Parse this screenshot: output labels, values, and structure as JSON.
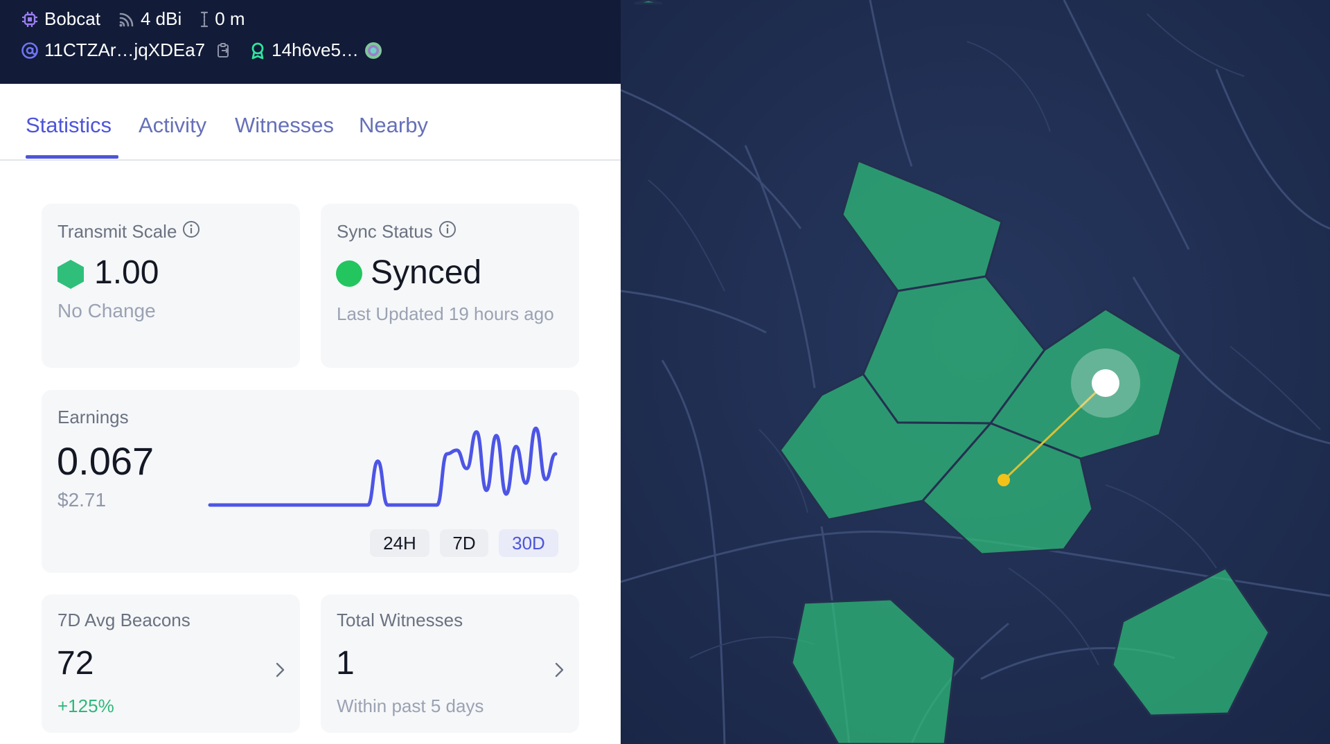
{
  "header": {
    "device": "Bobcat",
    "gain": "4 dBi",
    "elevation": "0 m",
    "address": "11CTZAr…jqXDEa7",
    "owner": "14h6ve5…"
  },
  "tabs": [
    {
      "label": "Statistics"
    },
    {
      "label": "Activity"
    },
    {
      "label": "Witnesses"
    },
    {
      "label": "Nearby"
    }
  ],
  "transmit": {
    "label": "Transmit Scale",
    "value": "1.00",
    "note": "No Change"
  },
  "sync": {
    "label": "Sync Status",
    "value": "Synced",
    "note": "Last Updated 19 hours ago"
  },
  "earnings": {
    "label": "Earnings",
    "value": "0.067",
    "usd": "$2.71",
    "ranges": [
      "24H",
      "7D",
      "30D"
    ],
    "selected_range": "30D"
  },
  "beacons": {
    "label": "7D Avg Beacons",
    "value": "72",
    "change": "+125%"
  },
  "witnesses": {
    "label": "Total Witnesses",
    "value": "1",
    "note": "Within past 5 days"
  },
  "colors": {
    "accent": "#4d55d9",
    "hex_green": "#2fbf7a",
    "sync_green": "#22c55e",
    "positive": "#2eb87a",
    "header_bg": "#121b37"
  },
  "icons": {
    "device": "chip-icon",
    "gain": "signal-icon",
    "elevation": "elevation-icon",
    "address": "at-icon",
    "copy": "copy-icon",
    "owner": "ribbon-icon",
    "owner_avatar": "avatar-icon"
  },
  "chart_data": {
    "type": "line",
    "x": [
      0,
      1,
      2,
      3,
      4,
      5,
      6,
      7,
      8,
      9,
      10,
      11,
      12,
      13,
      14,
      15,
      16,
      17,
      18,
      19,
      20,
      21,
      22,
      23,
      24,
      25,
      26,
      27,
      28,
      29,
      30,
      31,
      32,
      33,
      34,
      35
    ],
    "values": [
      0,
      0,
      0,
      0,
      0,
      0,
      0,
      0,
      0,
      0,
      0,
      0,
      0,
      0,
      0,
      0,
      0,
      0.6,
      0,
      0,
      0,
      0,
      0,
      0,
      0.7,
      0.75,
      0.5,
      1,
      0.2,
      0.95,
      0.15,
      0.8,
      0.3,
      1.05,
      0.35,
      0.7
    ],
    "ylim": [
      0,
      1.1
    ],
    "grid": false
  }
}
